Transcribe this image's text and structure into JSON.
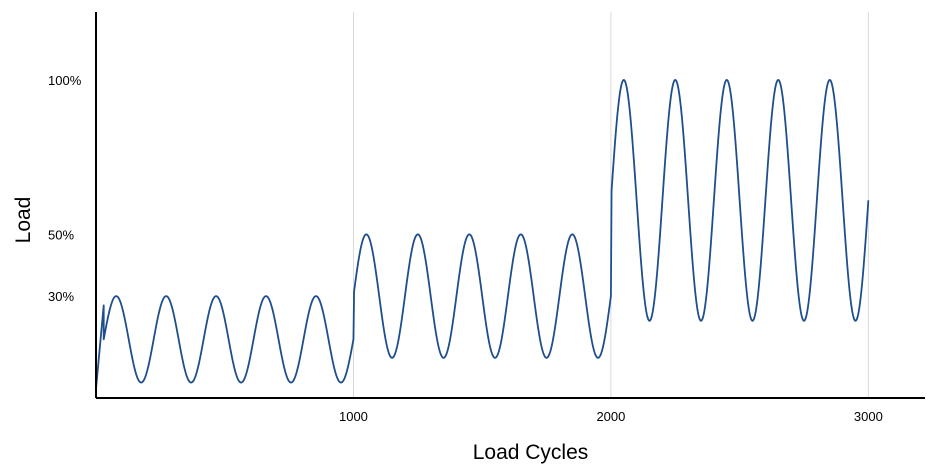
{
  "chart_data": {
    "type": "line",
    "xlabel": "Load Cycles",
    "ylabel": "Load",
    "xlim": [
      0,
      3220
    ],
    "ylim": [
      -3,
      122
    ],
    "grid": {
      "vertical": true,
      "horizontal": false
    },
    "x_ticks": [
      {
        "value": 1000,
        "label": "1000"
      },
      {
        "value": 2000,
        "label": "2000"
      },
      {
        "value": 3000,
        "label": "3000"
      }
    ],
    "y_ticks": [
      {
        "value": 30,
        "label": "30%"
      },
      {
        "value": 50,
        "label": "50%"
      },
      {
        "value": 100,
        "label": "100%"
      }
    ],
    "series": [
      {
        "color": "#1f4e8c",
        "initial_ramp": {
          "x": [
            0,
            30
          ],
          "y": [
            0,
            27
          ]
        },
        "segments": [
          {
            "x_start": 30,
            "x_end": 1000,
            "cycles": 5,
            "max": 30,
            "min": 2
          },
          {
            "x_start": 1000,
            "x_end": 2000,
            "cycles": 5,
            "max": 50,
            "min": 10
          },
          {
            "x_start": 2000,
            "x_end": 3000,
            "cycles": 5,
            "max": 100,
            "min": 22
          }
        ]
      }
    ]
  }
}
